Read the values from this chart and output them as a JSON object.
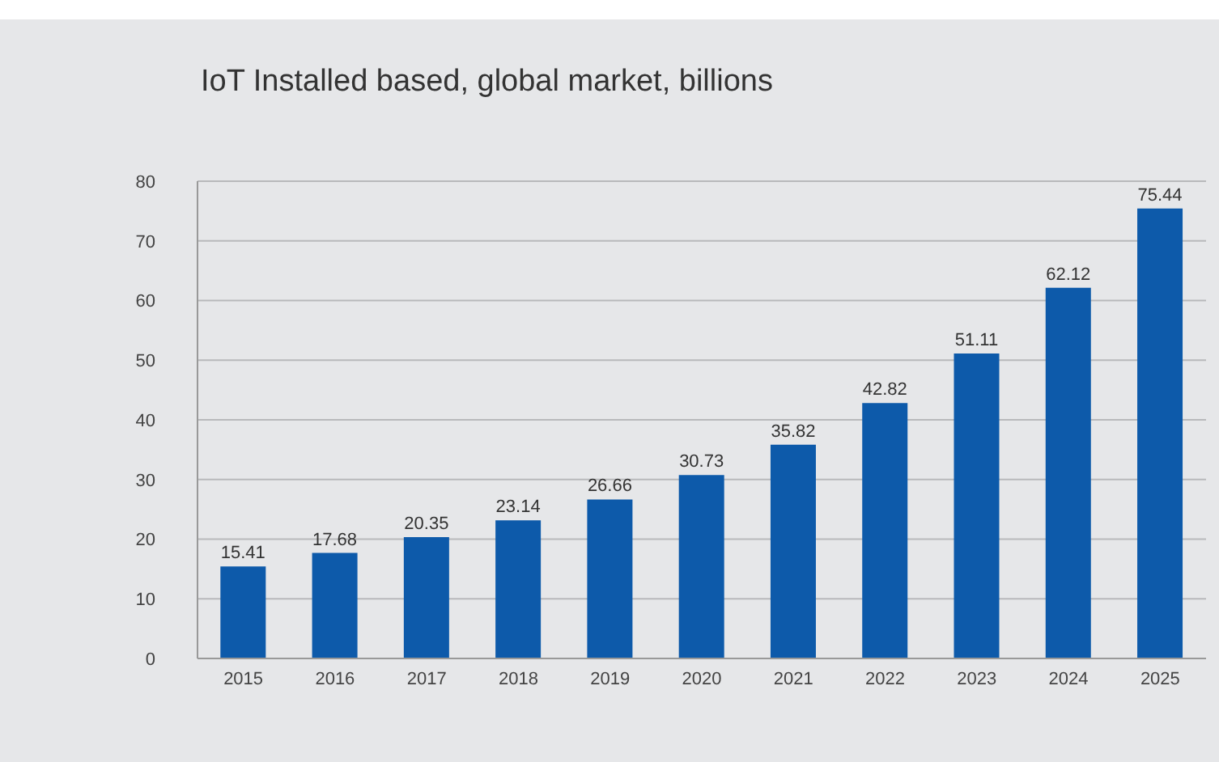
{
  "chart_data": {
    "type": "bar",
    "title": "IoT Installed based, global market, billions",
    "categories": [
      "2015",
      "2016",
      "2017",
      "2018",
      "2019",
      "2020",
      "2021",
      "2022",
      "2023",
      "2024",
      "2025"
    ],
    "values": [
      15.41,
      17.68,
      20.35,
      23.14,
      26.66,
      30.73,
      35.82,
      42.82,
      51.11,
      62.12,
      75.44
    ],
    "color": "#0d5aaa",
    "ylim": [
      0,
      80
    ],
    "yticks": [
      0,
      10,
      20,
      30,
      40,
      50,
      60,
      70,
      80
    ],
    "grid": "y",
    "data_labels": true
  }
}
